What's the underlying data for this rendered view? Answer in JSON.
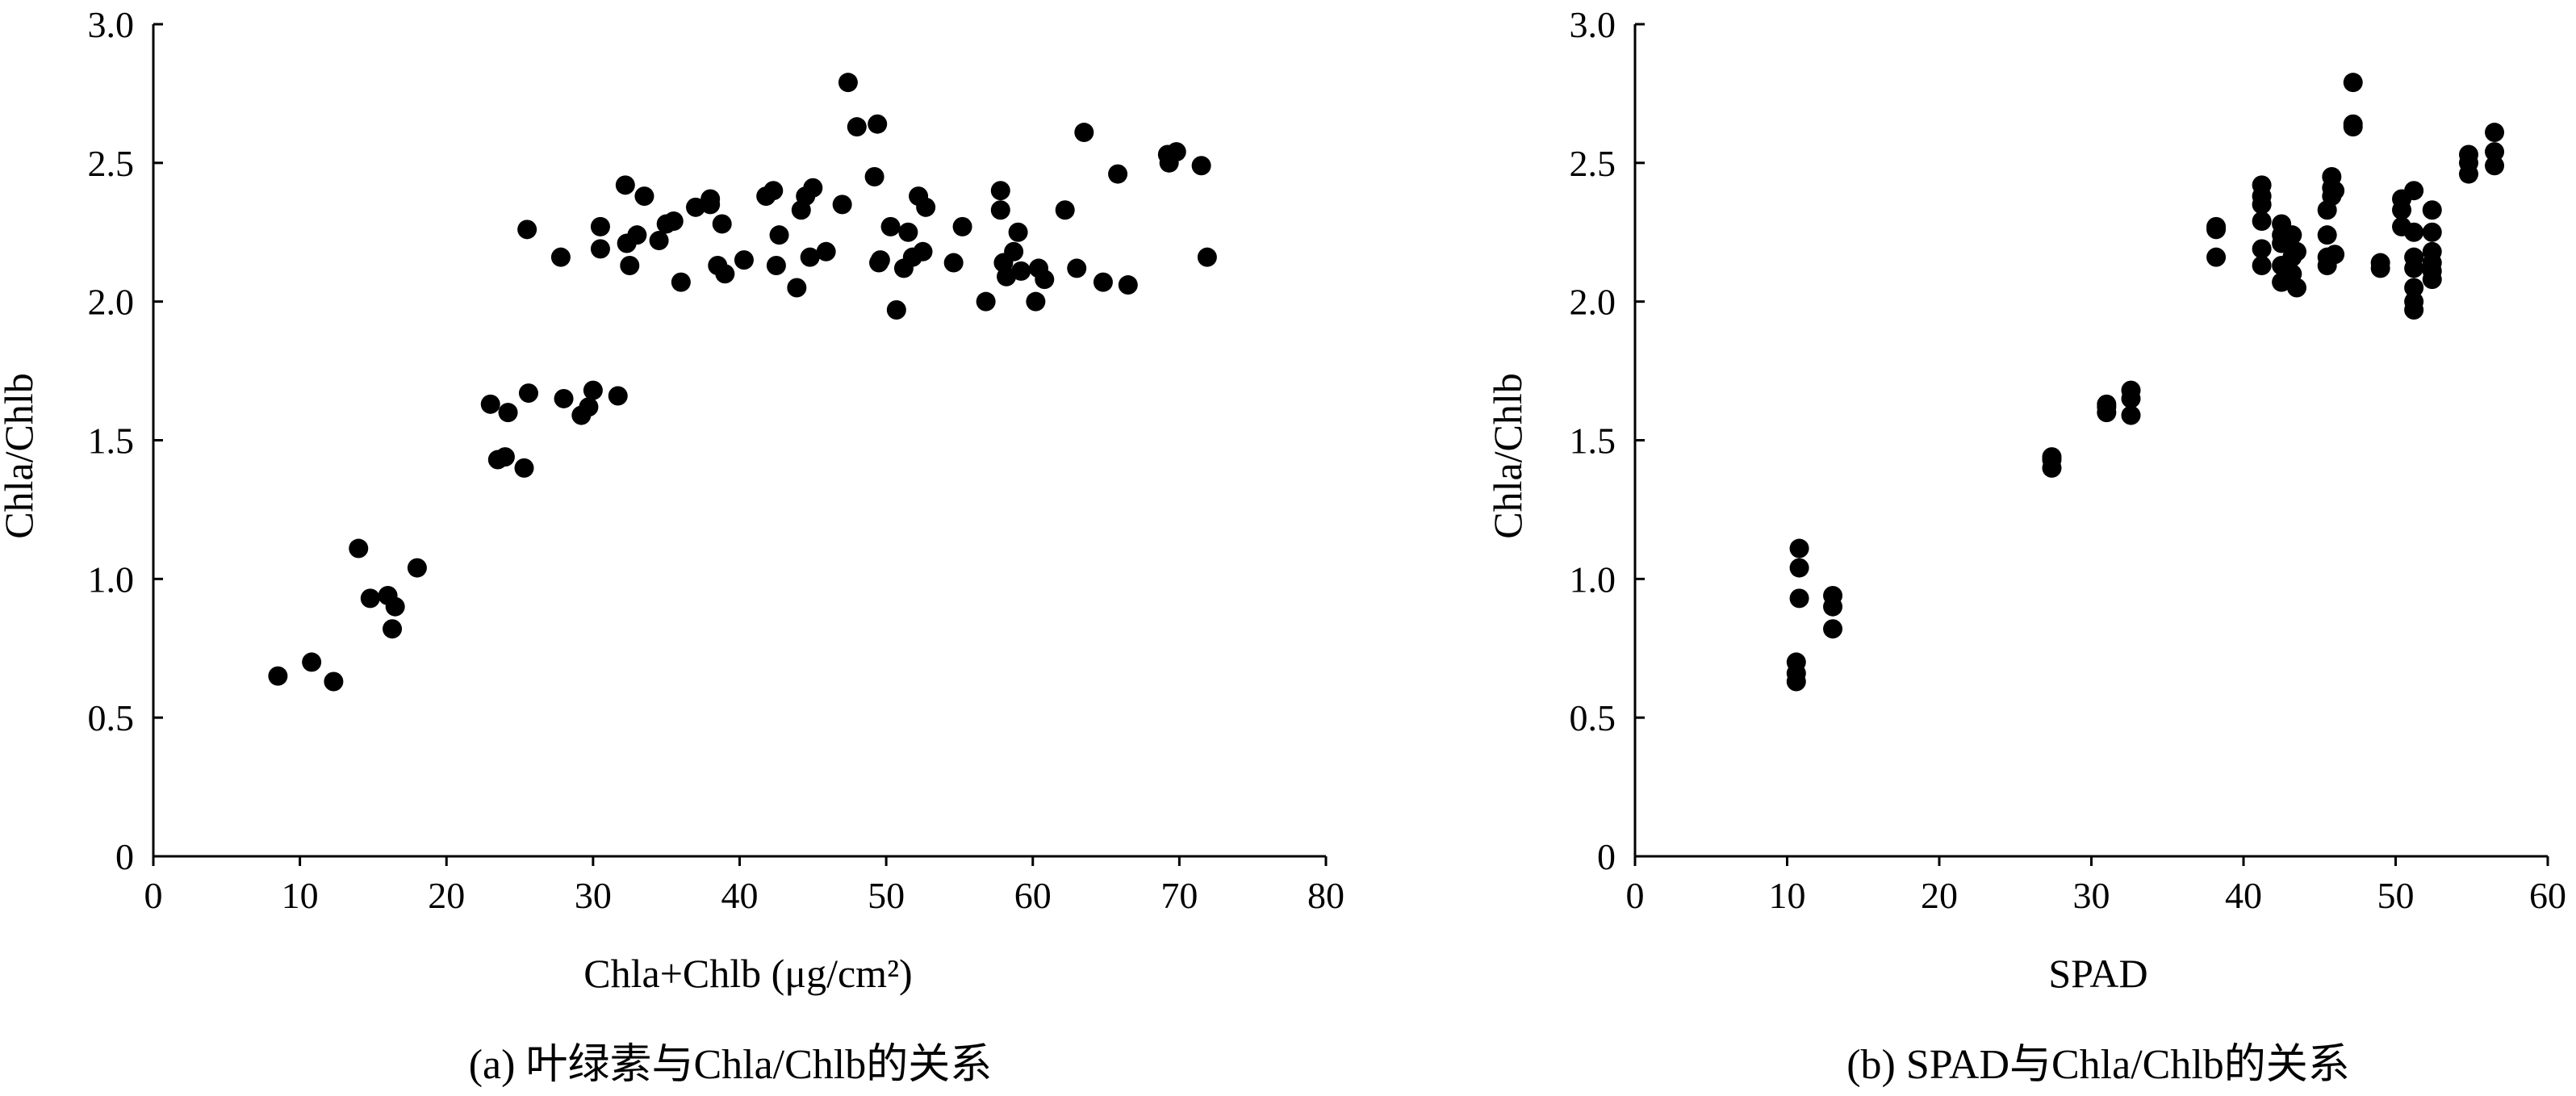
{
  "chart_data": [
    {
      "type": "scatter",
      "caption": "(a) 叶绿素与Chla/Chlb的关系",
      "xlabel": "Chla+Chlb (μg/cm²)",
      "ylabel": "Chla/Chlb",
      "xlim": [
        0,
        80
      ],
      "ylim": [
        0,
        3.0
      ],
      "xticks": [
        "0",
        "10",
        "20",
        "30",
        "40",
        "50",
        "60",
        "70",
        "80"
      ],
      "yticks": [
        "0",
        "0.5",
        "1.0",
        "1.5",
        "2.0",
        "2.5",
        "3.0"
      ],
      "grid": false,
      "series": [
        {
          "x": [
            8.5,
            10.8,
            12.3,
            14.0,
            14.8,
            16.0,
            16.3,
            16.5,
            18.0,
            23.0,
            23.5,
            24.0,
            24.2,
            25.3,
            25.6,
            25.5,
            27.8,
            28.0,
            29.2,
            29.7,
            30.0,
            31.7,
            30.5,
            30.5,
            32.2,
            32.3,
            32.5,
            33.0,
            33.5,
            34.5,
            35.0,
            35.5,
            36.0,
            37.0,
            38.0,
            38.0,
            38.5,
            38.8,
            39.0,
            40.3,
            41.8,
            42.3,
            42.5,
            42.7,
            43.9,
            44.2,
            44.5,
            44.8,
            45.0,
            45.9,
            47.0,
            47.4,
            48.0,
            49.2,
            49.5,
            49.6,
            49.4,
            50.3,
            50.7,
            51.2,
            51.5,
            51.8,
            52.2,
            52.5,
            52.7,
            54.6,
            55.2,
            56.8,
            57.8,
            57.8,
            58.0,
            58.2,
            58.7,
            59.0,
            59.2,
            60.2,
            60.4,
            60.8,
            62.2,
            63.0,
            63.5,
            64.8,
            65.8,
            66.5,
            69.2,
            69.3,
            69.8,
            71.5,
            71.9
          ],
          "y": [
            0.65,
            0.7,
            0.63,
            1.11,
            0.93,
            0.94,
            0.82,
            0.9,
            1.04,
            1.63,
            1.43,
            1.44,
            1.6,
            1.4,
            1.67,
            2.26,
            2.16,
            1.65,
            1.59,
            1.62,
            1.68,
            1.66,
            2.27,
            2.19,
            2.42,
            2.21,
            2.13,
            2.24,
            2.38,
            2.22,
            2.28,
            2.29,
            2.07,
            2.34,
            2.37,
            2.35,
            2.13,
            2.28,
            2.1,
            2.15,
            2.38,
            2.4,
            2.13,
            2.24,
            2.05,
            2.33,
            2.38,
            2.16,
            2.41,
            2.18,
            2.35,
            2.79,
            2.63,
            2.45,
            2.14,
            2.15,
            2.64,
            2.27,
            1.97,
            2.12,
            2.25,
            2.16,
            2.38,
            2.18,
            2.34,
            2.14,
            2.27,
            2.0,
            2.4,
            2.33,
            2.14,
            2.09,
            2.18,
            2.25,
            2.11,
            2.0,
            2.12,
            2.08,
            2.33,
            2.12,
            2.61,
            2.07,
            2.46,
            2.06,
            2.53,
            2.5,
            2.54,
            2.49,
            2.16
          ]
        }
      ]
    },
    {
      "type": "scatter",
      "caption": "(b) SPAD与Chla/Chlb的关系",
      "xlabel": "SPAD",
      "ylabel": "Chla/Chlb",
      "xlim": [
        0,
        60
      ],
      "ylim": [
        0,
        3.0
      ],
      "xticks": [
        "0",
        "10",
        "20",
        "30",
        "40",
        "50",
        "60"
      ],
      "yticks": [
        "0",
        "0.5",
        "1.0",
        "1.5",
        "2.0",
        "2.5",
        "3.0"
      ],
      "grid": false,
      "series": [
        {
          "x": [
            10.6,
            10.6,
            10.6,
            10.8,
            10.8,
            10.8,
            13.0,
            13.0,
            13.0,
            27.4,
            27.4,
            27.4,
            31.0,
            31.0,
            31.0,
            32.6,
            32.6,
            32.6,
            38.2,
            38.2,
            38.2,
            41.2,
            41.2,
            41.2,
            41.2,
            41.2,
            41.2,
            42.5,
            42.5,
            42.5,
            42.5,
            42.5,
            43.2,
            43.2,
            43.2,
            43.2,
            43.5,
            43.5,
            45.5,
            45.5,
            45.5,
            45.5,
            45.8,
            45.8,
            45.8,
            46.0,
            46.0,
            47.2,
            47.2,
            47.2,
            49.0,
            49.0,
            50.4,
            50.4,
            50.4,
            51.2,
            51.2,
            51.2,
            51.2,
            51.2,
            51.2,
            51.2,
            52.4,
            52.4,
            52.4,
            52.4,
            52.4,
            52.4,
            54.8,
            54.8,
            54.8,
            56.5,
            56.5,
            56.5
          ],
          "y": [
            0.63,
            0.66,
            0.7,
            0.93,
            1.04,
            1.11,
            0.82,
            0.9,
            0.94,
            1.4,
            1.43,
            1.44,
            1.6,
            1.62,
            1.63,
            1.59,
            1.65,
            1.68,
            2.16,
            2.26,
            2.27,
            2.13,
            2.19,
            2.29,
            2.35,
            2.38,
            2.42,
            2.07,
            2.13,
            2.21,
            2.24,
            2.28,
            2.1,
            2.16,
            2.19,
            2.24,
            2.05,
            2.18,
            2.13,
            2.16,
            2.24,
            2.33,
            2.38,
            2.41,
            2.45,
            2.17,
            2.4,
            2.63,
            2.64,
            2.79,
            2.12,
            2.14,
            2.27,
            2.33,
            2.37,
            1.97,
            2.0,
            2.05,
            2.12,
            2.16,
            2.25,
            2.4,
            2.08,
            2.11,
            2.14,
            2.18,
            2.25,
            2.33,
            2.46,
            2.5,
            2.53,
            2.49,
            2.54,
            2.61
          ]
        }
      ]
    }
  ]
}
